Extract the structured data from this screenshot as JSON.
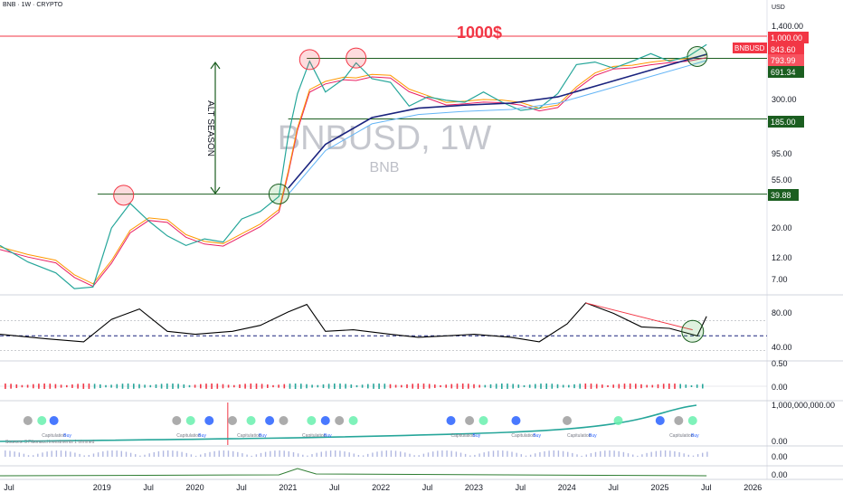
{
  "header": {
    "symbol_line": "BNB · 1W · CRYPTO",
    "currency": "USD"
  },
  "watermark": {
    "ticker": "BNBUSD, 1W",
    "name": "BNB"
  },
  "annotations": {
    "target": "1000$",
    "alt_season": "ALT SEASON",
    "circles_red": [
      {
        "year": 2019.33,
        "price": 39
      },
      {
        "year": 2021.33,
        "price": 620
      },
      {
        "year": 2021.83,
        "price": 640
      }
    ],
    "circles_green": [
      {
        "year": 2021.0,
        "price": 40
      },
      {
        "year": 2025.5,
        "price": 660
      }
    ]
  },
  "indicator_labels": {
    "capitulation": "Capitulation",
    "buy": "Buy",
    "sources": "Sources: 3 Fibonacci investments 1 trimmed"
  },
  "price_tags": {
    "target": "1,000.00",
    "symbol": "BNBUSD",
    "last": "843.60",
    "ema": "793.99",
    "ma": "691.34",
    "level_185": "185.00",
    "level_40": "39.88"
  },
  "colors": {
    "red": "#f23645",
    "green": "#1b5e20",
    "dark_blue": "#1a237e",
    "light_blue": "#64b5f6",
    "orange": "#ff9800",
    "pink": "#e91e63",
    "teal": "#26a69a",
    "watermark": "#b2b5be"
  },
  "chart_data": {
    "type": "line",
    "title": "BNBUSD, 1W",
    "x_ticks": [
      "Jul",
      "2019",
      "Jul",
      "2020",
      "Jul",
      "2021",
      "Jul",
      "2022",
      "Jul",
      "2023",
      "Jul",
      "2024",
      "Jul",
      "2025",
      "Jul",
      "2026"
    ],
    "price_axis_ticks": [
      "1,400.00",
      "691.34",
      "300.00",
      "185.00",
      "95.00",
      "55.00",
      "39.88",
      "20.00",
      "12.00",
      "7.00"
    ],
    "price_scale": "log",
    "price_range": [
      5.5,
      1500
    ],
    "horizontal_levels": [
      1000,
      185,
      39.88,
      636
    ],
    "series": [
      {
        "x": [
          2018.0,
          2018.3,
          2018.6,
          2018.8,
          2019.0,
          2019.2,
          2019.4,
          2019.6,
          2019.8,
          2020.0,
          2020.2,
          2020.4,
          2020.6,
          2020.8,
          2021.0,
          2021.1,
          2021.2,
          2021.33,
          2021.5,
          2021.7,
          2021.83,
          2022.0,
          2022.2,
          2022.4,
          2022.6,
          2022.8,
          2023.0,
          2023.2,
          2023.4,
          2023.6,
          2023.8,
          2024.0,
          2024.2,
          2024.4,
          2024.6,
          2024.8,
          2025.0,
          2025.2,
          2025.4,
          2025.6
        ],
        "values": [
          14,
          10,
          8,
          5.8,
          6,
          20,
          33,
          23,
          17,
          14,
          16,
          15,
          24,
          28,
          38,
          130,
          310,
          600,
          320,
          420,
          580,
          420,
          390,
          240,
          290,
          270,
          260,
          320,
          260,
          220,
          230,
          310,
          560,
          590,
          520,
          600,
          700,
          600,
          660,
          843.6
        ]
      },
      {
        "name": "",
        "x": [
          2021.1,
          2021.5,
          2022.0,
          2022.5,
          2023.0,
          2023.5,
          2024.0,
          2024.5,
          2025.0,
          2025.6
        ],
        "values": [
          45,
          110,
          190,
          230,
          245,
          255,
          290,
          380,
          500,
          691.34
        ]
      }
    ],
    "rsi": {
      "x": [
        2018.0,
        2018.5,
        2018.9,
        2019.2,
        2019.5,
        2019.8,
        2020.1,
        2020.5,
        2020.8,
        2021.1,
        2021.3,
        2021.5,
        2021.8,
        2022.2,
        2022.5,
        2022.8,
        2023.1,
        2023.5,
        2023.8,
        2024.1,
        2024.3,
        2024.6,
        2024.9,
        2025.2,
        2025.5,
        2025.6
      ],
      "values": [
        52,
        46,
        42,
        72,
        86,
        56,
        52,
        56,
        64,
        82,
        92,
        56,
        58,
        52,
        48,
        50,
        52,
        48,
        42,
        66,
        94,
        80,
        62,
        60,
        50,
        76
      ],
      "ticks": [
        "80.00",
        "40.00"
      ]
    },
    "macd_ticks": [
      "0.50",
      "0.00"
    ],
    "volume_ticks": [
      "1,000,000,000.00",
      "0.00"
    ],
    "lower_ticks": [
      "0.00",
      "0.00"
    ]
  }
}
